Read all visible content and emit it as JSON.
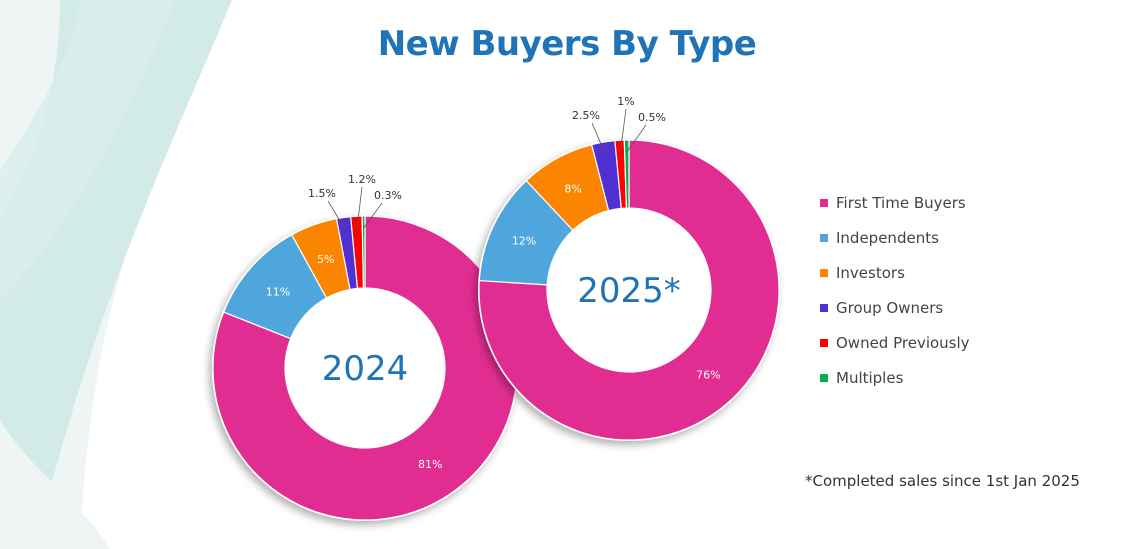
{
  "title": "New Buyers By Type",
  "footnote": "*Completed sales since 1st Jan 2025",
  "chart_data": [
    {
      "type": "pie",
      "subtype": "donut",
      "center_label": "2024",
      "categories": [
        "First Time Buyers",
        "Independents",
        "Investors",
        "Group Owners",
        "Owned Previously",
        "Multiples"
      ],
      "values": [
        81,
        11,
        5,
        1.5,
        1.2,
        0.3
      ],
      "labels": [
        "81%",
        "11%",
        "5%",
        "1.5%",
        "1.2%",
        "0.3%"
      ],
      "colors": [
        "#e12d91",
        "#4fa6dc",
        "#fb8500",
        "#5030d0",
        "#ff0000",
        "#00b050"
      ]
    },
    {
      "type": "pie",
      "subtype": "donut",
      "center_label": "2025*",
      "categories": [
        "First Time Buyers",
        "Independents",
        "Investors",
        "Group Owners",
        "Owned Previously",
        "Multiples"
      ],
      "values": [
        76,
        12,
        8,
        2.5,
        1,
        0.5
      ],
      "labels": [
        "76%",
        "12%",
        "8%",
        "2.5%",
        "1%",
        "0.5%"
      ],
      "colors": [
        "#e12d91",
        "#4fa6dc",
        "#fb8500",
        "#5030d0",
        "#ff0000",
        "#00b050"
      ]
    }
  ],
  "legend": {
    "position": "right",
    "items": [
      {
        "label": "First Time Buyers",
        "color": "#e12d91"
      },
      {
        "label": "Independents",
        "color": "#4fa6dc"
      },
      {
        "label": "Investors",
        "color": "#fb8500"
      },
      {
        "label": "Group Owners",
        "color": "#5030d0"
      },
      {
        "label": "Owned Previously",
        "color": "#ff0000"
      },
      {
        "label": "Multiples",
        "color": "#00b050"
      }
    ]
  }
}
